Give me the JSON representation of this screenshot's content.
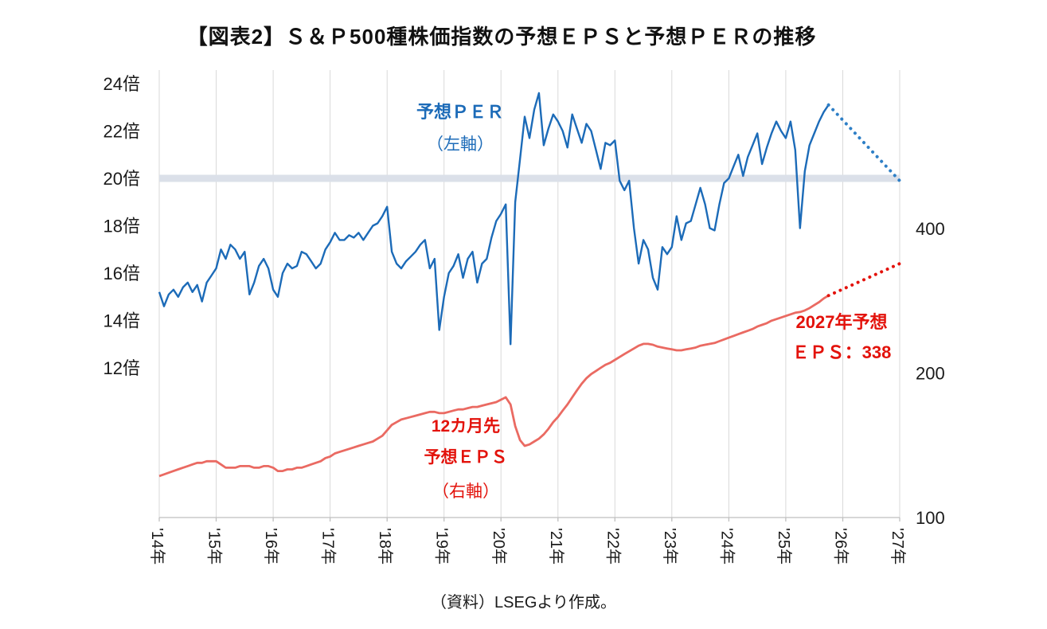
{
  "title": "【図表2】Ｓ＆Ｐ500種株価指数の予想ＥＰＳと予想ＰＥＲの推移",
  "source_note": "（資料）LSEGより作成。",
  "labels": {
    "per_line_1": "予想ＰＥＲ",
    "per_line_2": "（左軸）",
    "eps_line_1": "12カ月先",
    "eps_line_2": "予想ＥＰＳ",
    "eps_line_3": "（右軸）",
    "forecast_line_1": "2027年予想",
    "forecast_line_2": "ＥＰＳ：338"
  },
  "chart_data": {
    "type": "line",
    "title": "S&P500種株価指数の予想EPSと予想PERの推移",
    "colors": {
      "per": "#1c6bb8",
      "per_forecast": "#2e7fc6",
      "eps": "#ea6a62",
      "eps_forecast": "#e3120b",
      "grid": "#d9d9d9",
      "axis": "#bfbfbf",
      "band": "#dbe0e9",
      "tick_text": "#1a1a1a"
    },
    "left_axis": {
      "unit": "倍",
      "ticks": [
        24,
        22,
        20,
        18,
        16,
        14,
        12
      ],
      "tick_labels": [
        "24倍",
        "22倍",
        "20倍",
        "18倍",
        "16倍",
        "14倍",
        "12倍"
      ],
      "band_at": 20
    },
    "right_axis": {
      "scale": "log",
      "ticks": [
        400,
        200,
        100
      ],
      "tick_labels": [
        "400",
        "200",
        "100"
      ]
    },
    "x_axis": {
      "years": [
        2014,
        2015,
        2016,
        2017,
        2018,
        2019,
        2020,
        2021,
        2022,
        2023,
        2024,
        2025,
        2026,
        2027
      ],
      "tick_labels": [
        "'14年",
        "'15年",
        "'16年",
        "'17年",
        "'18年",
        "'19年",
        "'20年",
        "'21年",
        "'22年",
        "'23年",
        "'24年",
        "'25年",
        "'26年",
        "'27年"
      ]
    },
    "series_per": {
      "name": "予想PER（左軸）",
      "axis": "left",
      "start_year": 2014,
      "values_monthly": [
        15.2,
        14.6,
        15.1,
        15.3,
        15.0,
        15.4,
        15.6,
        15.2,
        15.5,
        14.8,
        15.6,
        15.9,
        16.2,
        17.0,
        16.6,
        17.2,
        17.0,
        16.6,
        16.9,
        15.1,
        15.6,
        16.3,
        16.6,
        16.2,
        15.3,
        15.0,
        16.0,
        16.4,
        16.2,
        16.3,
        16.9,
        16.8,
        16.5,
        16.2,
        16.4,
        17.0,
        17.3,
        17.7,
        17.4,
        17.4,
        17.6,
        17.5,
        17.7,
        17.4,
        17.7,
        18.0,
        18.1,
        18.4,
        18.8,
        16.9,
        16.4,
        16.2,
        16.5,
        16.7,
        16.9,
        17.2,
        17.4,
        16.2,
        16.6,
        13.6,
        15.0,
        16.0,
        16.3,
        16.8,
        15.8,
        16.6,
        16.9,
        15.6,
        16.4,
        16.6,
        17.5,
        18.2,
        18.5,
        18.9,
        13.0,
        19.0,
        20.8,
        22.6,
        21.7,
        22.9,
        23.6,
        21.4,
        22.1,
        22.7,
        22.4,
        22.0,
        21.3,
        22.7,
        22.1,
        21.5,
        22.3,
        22.0,
        21.2,
        20.4,
        21.5,
        21.4,
        21.6,
        19.9,
        19.5,
        19.9,
        17.9,
        16.4,
        17.4,
        17.0,
        15.8,
        15.3,
        17.1,
        16.8,
        17.1,
        18.4,
        17.4,
        18.1,
        18.2,
        18.9,
        19.6,
        18.9,
        17.9,
        17.8,
        18.9,
        19.8,
        20.0,
        20.5,
        21.0,
        20.1,
        20.9,
        21.4,
        21.9,
        20.6,
        21.3,
        21.9,
        22.4,
        22.0,
        21.7,
        22.4,
        21.2,
        17.9,
        20.3,
        21.4,
        21.9,
        22.4,
        22.8,
        23.1
      ]
    },
    "series_per_forecast": {
      "name": "予想PER予測（点線）",
      "axis": "left",
      "points": [
        [
          2025.75,
          23.1
        ],
        [
          2027.0,
          19.9
        ]
      ]
    },
    "series_eps": {
      "name": "12カ月先予想EPS（右軸）",
      "axis": "right",
      "start_year": 2014,
      "values_monthly": [
        122,
        123,
        124,
        125,
        126,
        127,
        128,
        129,
        130,
        130,
        131,
        131,
        131,
        129,
        127,
        127,
        127,
        128,
        128,
        128,
        127,
        127,
        128,
        128,
        127,
        125,
        125,
        126,
        126,
        127,
        127,
        128,
        129,
        130,
        131,
        133,
        134,
        136,
        137,
        138,
        139,
        140,
        141,
        142,
        143,
        144,
        146,
        148,
        152,
        156,
        158,
        160,
        161,
        162,
        163,
        164,
        165,
        166,
        166,
        165,
        165,
        166,
        167,
        168,
        168,
        169,
        170,
        170,
        171,
        172,
        173,
        174,
        176,
        178,
        172,
        155,
        145,
        141,
        142,
        144,
        146,
        149,
        153,
        158,
        162,
        167,
        172,
        178,
        184,
        190,
        195,
        199,
        202,
        205,
        208,
        210,
        213,
        216,
        219,
        222,
        225,
        228,
        230,
        230,
        229,
        227,
        226,
        225,
        224,
        223,
        223,
        224,
        225,
        226,
        228,
        229,
        230,
        231,
        233,
        235,
        237,
        239,
        241,
        243,
        245,
        247,
        250,
        252,
        254,
        257,
        259,
        261,
        263,
        265,
        267,
        268,
        270,
        273,
        277,
        281,
        286,
        290
      ]
    },
    "series_eps_forecast": {
      "name": "予想EPS予測（点線）2027年予想EPS:338",
      "axis": "right",
      "points": [
        [
          2025.75,
          290
        ],
        [
          2027.0,
          338
        ]
      ]
    }
  }
}
